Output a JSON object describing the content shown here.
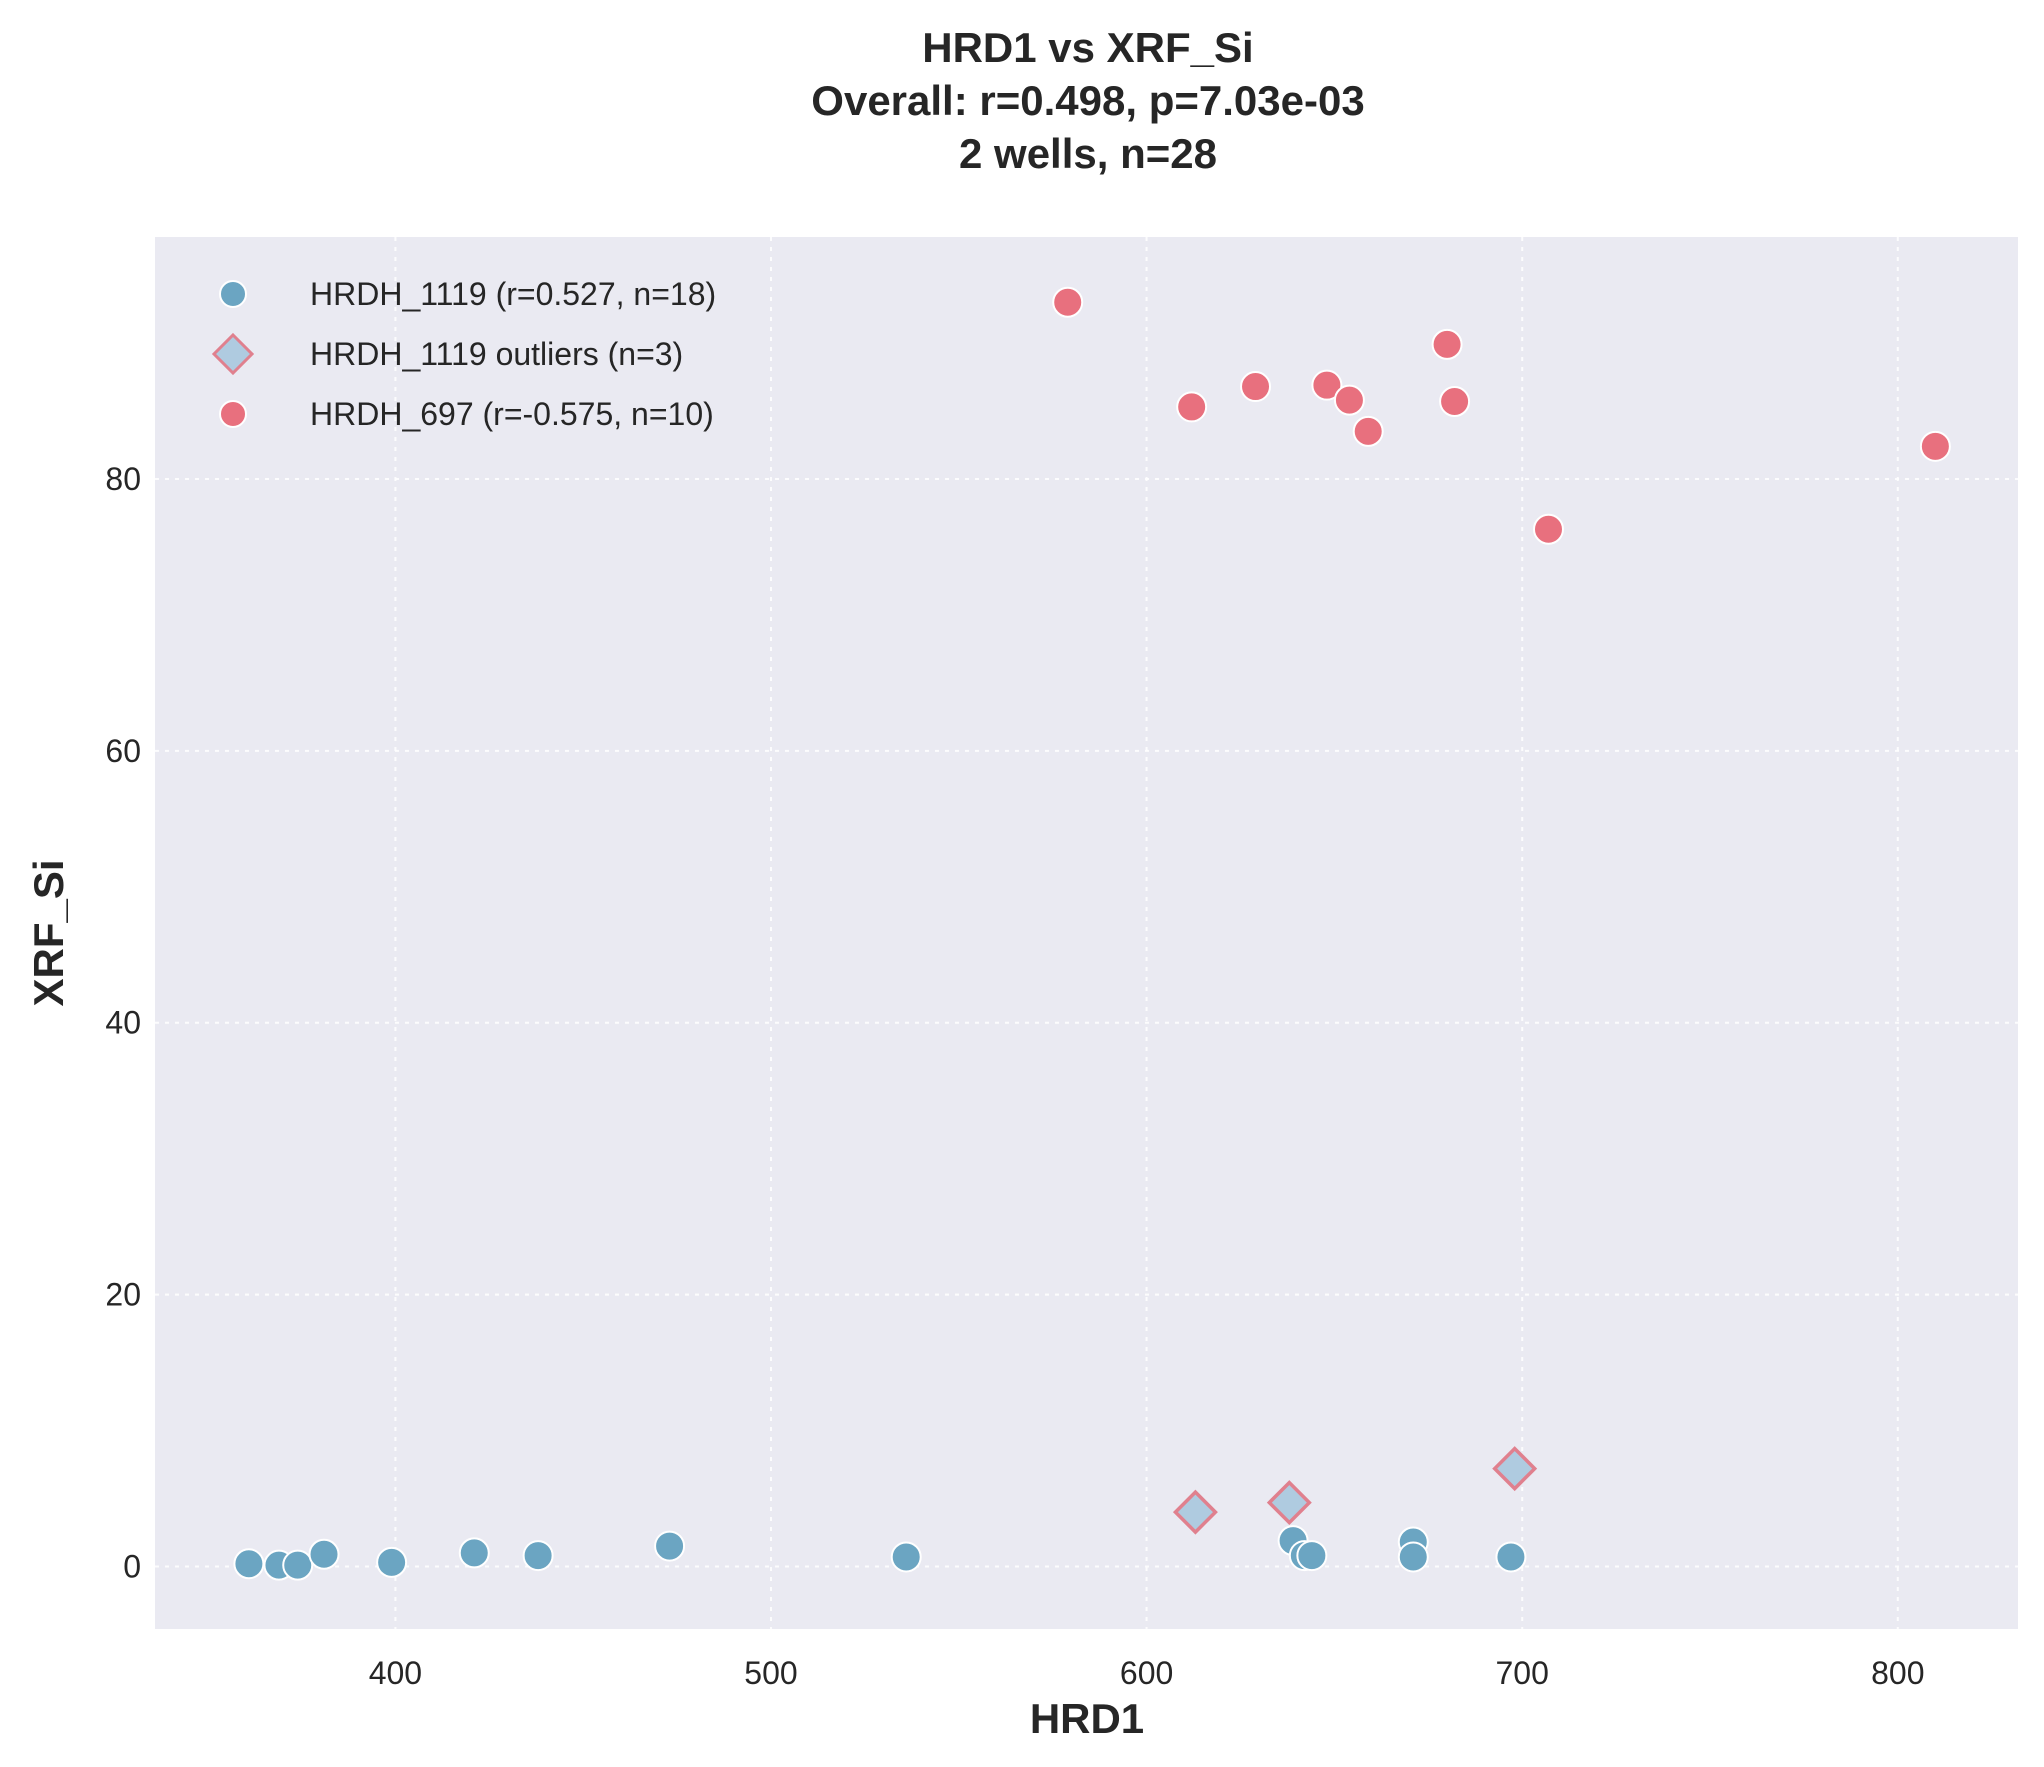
{
  "chart_data": {
    "type": "scatter",
    "title_lines": [
      "HRD1 vs XRF_Si",
      "Overall: r=0.498, p=7.03e-03",
      "2 wells, n=28"
    ],
    "xlabel": "HRD1",
    "ylabel": "XRF_Si",
    "xlim": [
      336,
      832
    ],
    "ylim": [
      -4.6,
      97.8
    ],
    "xticks": [
      400,
      500,
      600,
      700,
      800
    ],
    "yticks": [
      0,
      20,
      40,
      60,
      80
    ],
    "grid": true,
    "legend_position": "top-left",
    "series": [
      {
        "name": "HRDH_1119 (r=0.527, n=18)",
        "marker": "circle",
        "color": "#6ba5c2",
        "points": [
          [
            361,
            0.2
          ],
          [
            369,
            0.1
          ],
          [
            374,
            0.1
          ],
          [
            381,
            0.9
          ],
          [
            399,
            0.3
          ],
          [
            421,
            1.0
          ],
          [
            438,
            0.8
          ],
          [
            473,
            1.5
          ],
          [
            536,
            0.7
          ],
          [
            639,
            1.9
          ],
          [
            642,
            0.8
          ],
          [
            644,
            0.8
          ],
          [
            671,
            1.8
          ],
          [
            671,
            0.7
          ],
          [
            697,
            0.7
          ]
        ]
      },
      {
        "name": "HRDH_1119 outliers (n=3)",
        "marker": "diamond",
        "color": "#afcbe0",
        "edge_color": "#e0808e",
        "points": [
          [
            613,
            4.0
          ],
          [
            638,
            4.7
          ],
          [
            698,
            7.2
          ]
        ]
      },
      {
        "name": "HRDH_697 (r=-0.575, n=10)",
        "marker": "circle",
        "color": "#e8707e",
        "points": [
          [
            579,
            93.0
          ],
          [
            612,
            85.3
          ],
          [
            629,
            86.8
          ],
          [
            648,
            86.9
          ],
          [
            654,
            85.8
          ],
          [
            659,
            83.5
          ],
          [
            680,
            89.9
          ],
          [
            682,
            85.7
          ],
          [
            707,
            76.3
          ],
          [
            810,
            82.4
          ]
        ]
      }
    ]
  }
}
